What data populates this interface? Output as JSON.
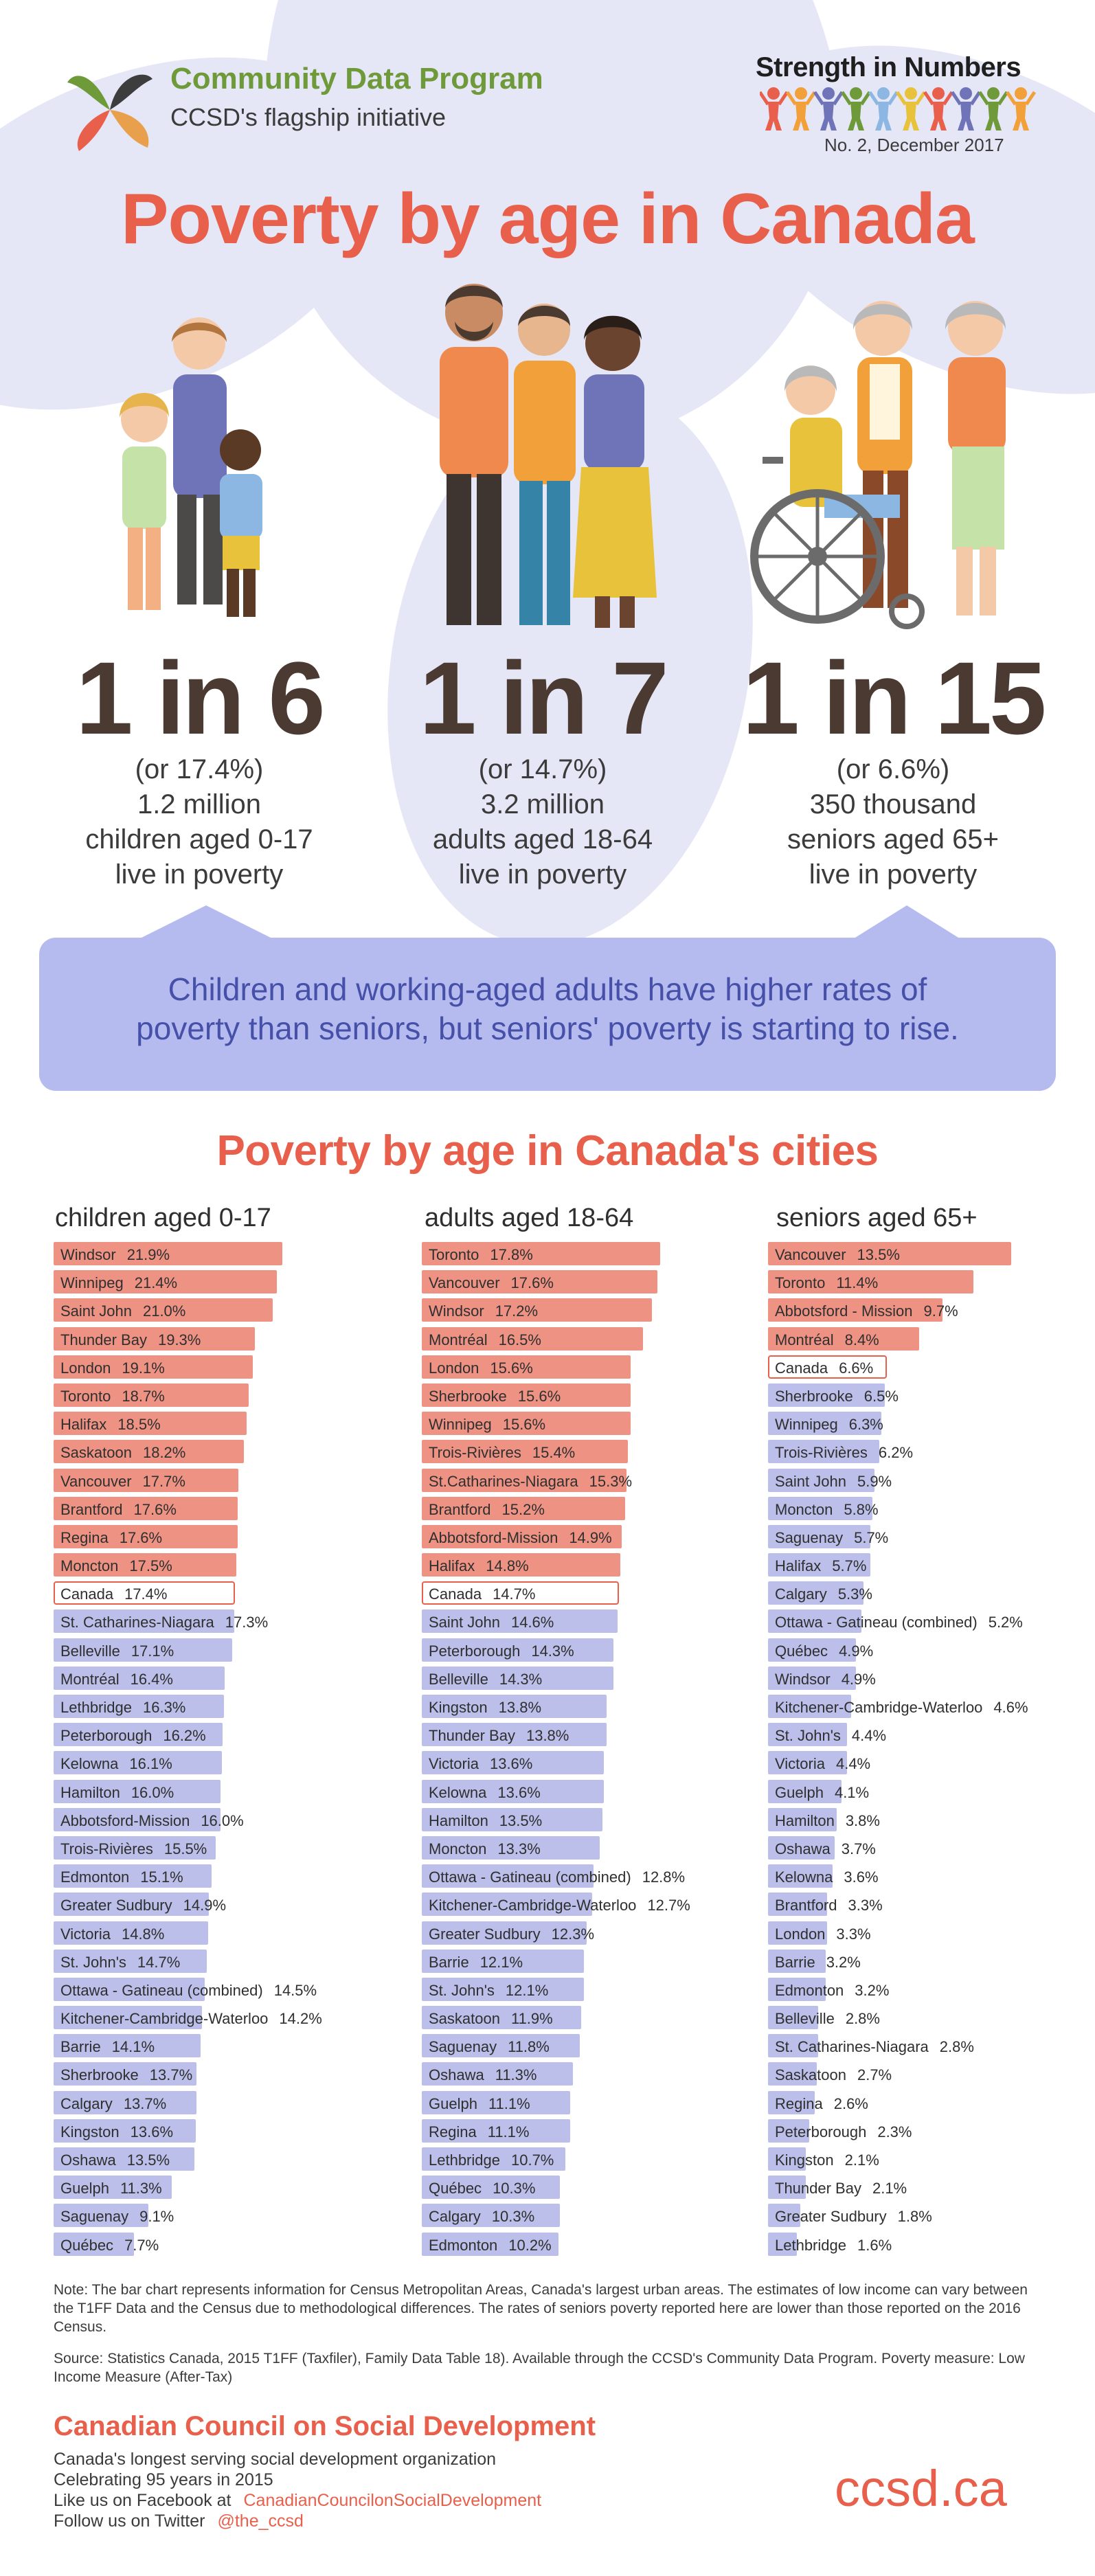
{
  "header": {
    "program_title": "Community Data Program",
    "program_subtitle": "CCSD's flagship initiative",
    "series_title": "Strength in Numbers",
    "issue": "No. 2, December 2017"
  },
  "main_title": "Poverty by age in Canada",
  "stats": [
    {
      "big": "1 in 6",
      "line1": "(or 17.4%)",
      "line2": "1.2 million",
      "line3": "children aged 0-17",
      "line4": "live in poverty"
    },
    {
      "big": "1 in 7",
      "line1": "(or 14.7%)",
      "line2": "3.2 million",
      "line3": "adults aged 18-64",
      "line4": "live in poverty"
    },
    {
      "big": "1 in 15",
      "line1": "(or 6.6%)",
      "line2": "350 thousand",
      "line3": "seniors aged 65+",
      "line4": "live in poverty"
    }
  ],
  "banner": {
    "line1": "Children and working-aged adults have higher rates of",
    "line2": "poverty than seniors, but seniors' poverty is starting to rise."
  },
  "cities_title": "Poverty by age in Canada's cities",
  "chart_data": [
    {
      "type": "bar",
      "title": "children aged 0-17",
      "highlight_above_canada": true,
      "categories": [
        "Windsor",
        "Winnipeg",
        "Saint John",
        "Thunder Bay",
        "London",
        "Toronto",
        "Halifax",
        "Saskatoon",
        "Vancouver",
        "Brantford",
        "Regina",
        "Moncton",
        "Canada",
        "St. Catharines-Niagara",
        "Belleville",
        "Montréal",
        "Lethbridge",
        "Peterborough",
        "Kelowna",
        "Hamilton",
        "Abbotsford-Mission",
        "Trois-Rivières",
        "Edmonton",
        "Greater Sudbury",
        "Victoria",
        "St. John's",
        "Ottawa - Gatineau (combined)",
        "Kitchener-Cambridge-Waterloo",
        "Barrie",
        "Sherbrooke",
        "Calgary",
        "Kingston",
        "Oshawa",
        "Guelph",
        "Saguenay",
        "Québec"
      ],
      "values": [
        21.9,
        21.4,
        21.0,
        19.3,
        19.1,
        18.7,
        18.5,
        18.2,
        17.7,
        17.6,
        17.6,
        17.5,
        17.4,
        17.3,
        17.1,
        16.4,
        16.3,
        16.2,
        16.1,
        16.0,
        16.0,
        15.5,
        15.1,
        14.9,
        14.8,
        14.7,
        14.5,
        14.2,
        14.1,
        13.7,
        13.7,
        13.6,
        13.5,
        11.3,
        9.1,
        7.7
      ],
      "labels": [
        "21.9%",
        "21.4%",
        "21.0%",
        "19.3%",
        "19.1%",
        "18.7%",
        "18.5%",
        "18.2%",
        "17.7%",
        "17.6%",
        "17.6%",
        "17.5%",
        "17.4%",
        "17.3%",
        "17.1%",
        "16.4%",
        "16.3%",
        "16.2%",
        "16.1%",
        "16.0%",
        "16.0%",
        "15.5%",
        "15.1%",
        "14.9%",
        "14.8%",
        "14.7%",
        "14.5%",
        "14.2%",
        "14.1%",
        "13.7%",
        "13.7%",
        "13.6%",
        "13.5%",
        "11.3%",
        "9.1%",
        "7.7%"
      ],
      "canada_value": 17.4,
      "colors": {
        "above": "#ee9384",
        "below": "#bbbfe9",
        "canada_border": "#e8604c"
      }
    },
    {
      "type": "bar",
      "title": "adults aged 18-64",
      "highlight_above_canada": true,
      "categories": [
        "Toronto",
        "Vancouver",
        "Windsor",
        "Montréal",
        "London",
        "Sherbrooke",
        "Winnipeg",
        "Trois-Rivières",
        "St.Catharines-Niagara",
        "Brantford",
        "Abbotsford-Mission",
        "Halifax",
        "Canada",
        "Saint John",
        "Peterborough",
        "Belleville",
        "Kingston",
        "Thunder Bay",
        "Victoria",
        "Kelowna",
        "Hamilton",
        "Moncton",
        "Ottawa - Gatineau (combined)",
        "Kitchener-Cambridge-Waterloo",
        "Greater Sudbury",
        "Barrie",
        "St. John's",
        "Saskatoon",
        "Saguenay",
        "Oshawa",
        "Guelph",
        "Regina",
        "Lethbridge",
        "Québec",
        "Calgary",
        "Edmonton"
      ],
      "values": [
        17.8,
        17.6,
        17.2,
        16.5,
        15.6,
        15.6,
        15.6,
        15.4,
        15.3,
        15.2,
        14.9,
        14.8,
        14.7,
        14.6,
        14.3,
        14.3,
        13.8,
        13.8,
        13.6,
        13.6,
        13.5,
        13.3,
        12.8,
        12.7,
        12.3,
        12.1,
        12.1,
        11.9,
        11.8,
        11.3,
        11.1,
        11.1,
        10.7,
        10.3,
        10.3,
        10.2
      ],
      "labels": [
        "17.8%",
        "17.6%",
        "17.2%",
        "16.5%",
        "15.6%",
        "15.6%",
        "15.6%",
        "15.4%",
        "15.3%",
        "15.2%",
        "14.9%",
        "14.8%",
        "14.7%",
        "14.6%",
        "14.3%",
        "14.3%",
        "13.8%",
        "13.8%",
        "13.6%",
        "13.6%",
        "13.5%",
        "13.3%",
        "12.8%",
        "12.7%",
        "12.3%",
        "12.1%",
        "12.1%",
        "11.9%",
        "11.8%",
        "11.3%",
        "11.1%",
        "11.1%",
        "10.7%",
        "10.3%",
        "10.3%",
        "10.2%"
      ],
      "canada_value": 14.7,
      "colors": {
        "above": "#ee9384",
        "below": "#bbbfe9",
        "canada_border": "#e8604c"
      }
    },
    {
      "type": "bar",
      "title": "seniors aged 65+",
      "highlight_above_canada": true,
      "categories": [
        "Vancouver",
        "Toronto",
        "Abbotsford - Mission",
        "Montréal",
        "Canada",
        "Sherbrooke",
        "Winnipeg",
        "Trois-Rivières",
        "Saint John",
        "Moncton",
        "Saguenay",
        "Halifax",
        "Calgary",
        "Ottawa - Gatineau (combined)",
        "Québec",
        "Windsor",
        "Kitchener-Cambridge-Waterloo",
        "St. John's",
        "Victoria",
        "Guelph",
        "Hamilton",
        "Oshawa",
        "Kelowna",
        "Brantford",
        "London",
        "Barrie",
        "Edmonton",
        "Belleville",
        "St. Catharines-Niagara",
        "Saskatoon",
        "Regina",
        "Peterborough",
        "Kingston",
        "Thunder Bay",
        "Greater Sudbury",
        "Lethbridge"
      ],
      "values": [
        13.5,
        11.4,
        9.7,
        8.4,
        6.6,
        6.5,
        6.3,
        6.2,
        5.9,
        5.8,
        5.7,
        5.7,
        5.3,
        5.2,
        4.9,
        4.9,
        4.6,
        4.4,
        4.4,
        4.1,
        3.8,
        3.7,
        3.6,
        3.3,
        3.3,
        3.2,
        3.2,
        2.8,
        2.8,
        2.7,
        2.6,
        2.3,
        2.1,
        2.1,
        1.8,
        1.6
      ],
      "labels": [
        "13.5%",
        "11.4%",
        "9.7%",
        "8.4%",
        "6.6%",
        "6.5%",
        "6.3%",
        "6.2%",
        "5.9%",
        "5.8%",
        "5.7%",
        "5.7%",
        "5.3%",
        "5.2%",
        "4.9%",
        "4.9%",
        "4.6%",
        "4.4%",
        "4.4%",
        "4.1%",
        "3.8%",
        "3.7%",
        "3.6%",
        "3.3%",
        "3.3%",
        "3.2%",
        "3.2%",
        "2.8%",
        "2.8%",
        "2.7%",
        "2.6%",
        "2.3%",
        "2.1%",
        "2.1%",
        "1.8%",
        "1.6%"
      ],
      "canada_value": 6.6,
      "colors": {
        "above": "#ee9384",
        "below": "#bbbfe9",
        "canada_border": "#e8604c"
      }
    }
  ],
  "note": "Note: The bar chart represents information for Census Metropolitan Areas, Canada's largest urban areas. The estimates of low income can vary between the T1FF Data and the Census due to methodological differences. The rates of seniors poverty reported here are lower than those reported on the 2016 Census.",
  "source": "Source: Statistics Canada, 2015 T1FF (Taxfiler), Family Data Table 18). Available through the CCSD's Community Data Program. Poverty measure: Low Income Measure (After-Tax)",
  "footer": {
    "org_name": "Canadian Council on Social Development",
    "tagline": "Canada's longest serving social development organization",
    "celebrating": "Celebrating 95 years in 2015",
    "facebook_label": "Like us on Facebook at",
    "facebook_handle": "CanadianCouncilonSocialDevelopment",
    "twitter_label": "Follow us on Twitter",
    "twitter_handle": "@the_ccsd",
    "url": "ccsd.ca"
  },
  "palette": {
    "title_red": "#e8604c",
    "program_green": "#6f9a3a",
    "banner_blue": "#b5bbef",
    "banner_text": "#4650a8"
  }
}
